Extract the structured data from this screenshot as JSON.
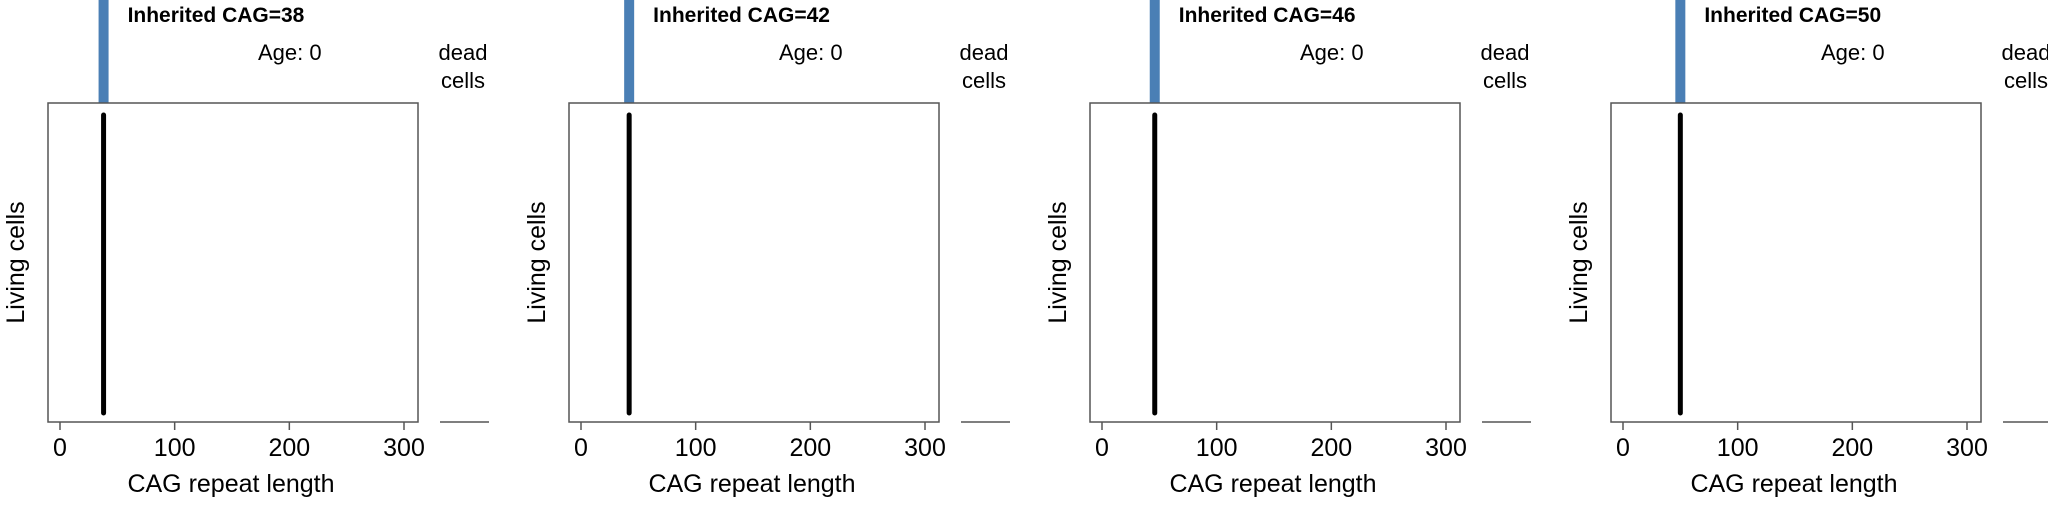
{
  "chart_data": [
    {
      "type": "line",
      "title": "Inherited CAG=38",
      "age_label": "Age: 0",
      "dead_label": "dead\ncells",
      "xlabel": "CAG repeat length",
      "ylabel": "Living cells",
      "xlim": [
        0,
        300
      ],
      "xticks": [
        "0",
        "100",
        "200",
        "300"
      ],
      "living_cells_cag": 38,
      "inherited_cag": 38,
      "dead_cells": 0
    },
    {
      "type": "line",
      "title": "Inherited CAG=42",
      "age_label": "Age: 0",
      "dead_label": "dead\ncells",
      "xlabel": "CAG repeat length",
      "ylabel": "Living cells",
      "xlim": [
        0,
        300
      ],
      "xticks": [
        "0",
        "100",
        "200",
        "300"
      ],
      "living_cells_cag": 42,
      "inherited_cag": 42,
      "dead_cells": 0
    },
    {
      "type": "line",
      "title": "Inherited CAG=46",
      "age_label": "Age: 0",
      "dead_label": "dead\ncells",
      "xlabel": "CAG repeat length",
      "ylabel": "Living cells",
      "xlim": [
        0,
        300
      ],
      "xticks": [
        "0",
        "100",
        "200",
        "300"
      ],
      "living_cells_cag": 46,
      "inherited_cag": 46,
      "dead_cells": 0
    },
    {
      "type": "line",
      "title": "Inherited CAG=50",
      "age_label": "Age: 0",
      "dead_label": "dead\ncells",
      "xlabel": "CAG repeat length",
      "ylabel": "Living cells",
      "xlim": [
        0,
        300
      ],
      "xticks": [
        "0",
        "100",
        "200",
        "300"
      ],
      "living_cells_cag": 50,
      "inherited_cag": 50,
      "dead_cells": 0
    }
  ],
  "colors": {
    "marker": "#4a7fb5",
    "distribution": "#000000",
    "frame": "#555555"
  }
}
